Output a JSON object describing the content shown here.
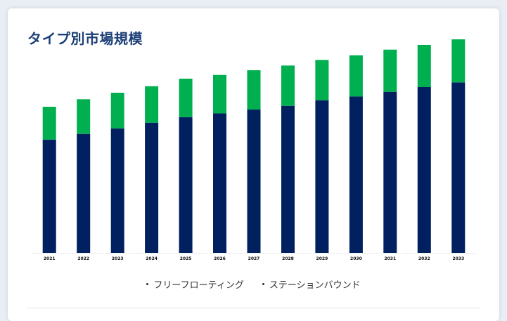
{
  "card": {
    "title": "タイプ別市場規模"
  },
  "chart_data": {
    "type": "bar",
    "stacked": true,
    "categories": [
      "2021",
      "2022",
      "2023",
      "2024",
      "2025",
      "2026",
      "2027",
      "2028",
      "2029",
      "2030",
      "2031",
      "2032",
      "2033"
    ],
    "series": [
      {
        "name": "フリーフローティング",
        "color": "#00205f",
        "values": [
          121,
          127,
          133,
          139,
          145,
          149,
          153,
          157,
          163,
          167,
          172,
          177,
          182
        ]
      },
      {
        "name": "ステーションバウンド",
        "color": "#00b050",
        "values": [
          35,
          37,
          38,
          39,
          41,
          41,
          42,
          43,
          43,
          44,
          45,
          45,
          46
        ]
      }
    ],
    "ylim": [
      0,
      240
    ],
    "xlabel": "",
    "ylabel": "",
    "grid": false,
    "legend_position": "bottom"
  }
}
